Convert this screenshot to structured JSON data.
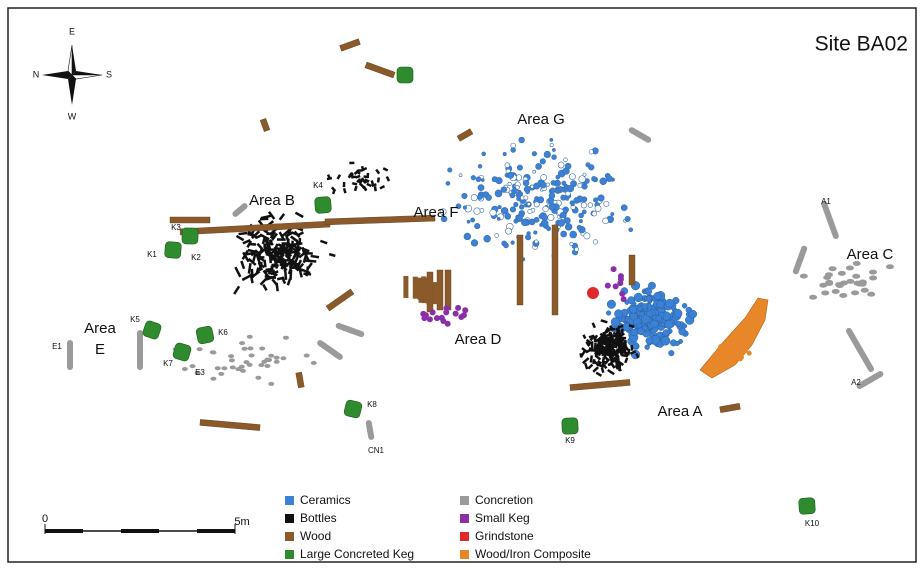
{
  "title": "Site BA02",
  "compass": {
    "north": "N",
    "east": "E",
    "south": "S",
    "west": "W"
  },
  "areas": [
    "Area G",
    "Area B",
    "Area F",
    "Area C",
    "Area D",
    "Area A",
    "Area",
    "E"
  ],
  "features": [
    "A1",
    "A2",
    "K1",
    "K2",
    "K3",
    "K4",
    "K5",
    "K6",
    "K7",
    "K8",
    "K9",
    "K10",
    "E1",
    "E3",
    "CN1"
  ],
  "scale": {
    "start": "0",
    "end": "5m"
  },
  "legend": [
    {
      "label": "Ceramics",
      "color": "#3b82d6"
    },
    {
      "label": "Bottles",
      "color": "#111111"
    },
    {
      "label": "Wood",
      "color": "#8b5a2b"
    },
    {
      "label": "Large Concreted Keg",
      "color": "#2e8b2e"
    },
    {
      "label": "Concretion",
      "color": "#9a9a9a"
    },
    {
      "label": "Small Keg",
      "color": "#8a2fa8"
    },
    {
      "label": "Grindstone",
      "color": "#e02a2a"
    },
    {
      "label": "Wood/Iron Composite",
      "color": "#e8862a"
    }
  ]
}
